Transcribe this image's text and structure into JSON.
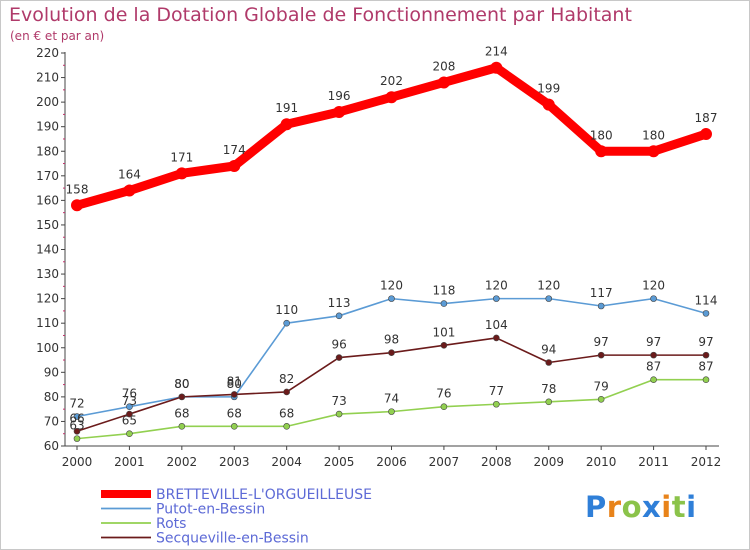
{
  "chart_data": {
    "type": "line",
    "title": "Evolution de la Dotation Globale de Fonctionnement par Habitant",
    "subtitle": "(en € et par an)",
    "xlabel": "",
    "ylabel": "",
    "x": [
      "2000",
      "2001",
      "2002",
      "2003",
      "2004",
      "2005",
      "2006",
      "2007",
      "2008",
      "2009",
      "2010",
      "2011",
      "2012"
    ],
    "ylim": [
      60,
      220
    ],
    "yticks": [
      "60",
      "70",
      "80",
      "90",
      "100",
      "110",
      "120",
      "130",
      "140",
      "150",
      "160",
      "170",
      "180",
      "190",
      "200",
      "210",
      "220"
    ],
    "grid": false,
    "legend_position": "bottom-left",
    "series": [
      {
        "name": "BRETTEVILLE-L'ORGUEILLEUSE",
        "color": "#ff0000",
        "values": [
          158,
          164,
          171,
          174,
          191,
          196,
          202,
          208,
          214,
          199,
          180,
          180,
          187
        ]
      },
      {
        "name": "Putot-en-Bessin",
        "color": "#5b9bd5",
        "values": [
          72,
          76,
          80,
          80,
          110,
          113,
          120,
          118,
          120,
          120,
          117,
          120,
          114
        ]
      },
      {
        "name": "Rots",
        "color": "#92d050",
        "values": [
          63,
          65,
          68,
          68,
          68,
          73,
          74,
          76,
          77,
          78,
          79,
          87,
          87
        ]
      },
      {
        "name": "Secqueville-en-Bessin",
        "color": "#6b1b1b",
        "values": [
          66,
          73,
          80,
          81,
          82,
          96,
          98,
          101,
          104,
          94,
          97,
          97,
          97
        ]
      }
    ]
  },
  "logo": {
    "letters": [
      "P",
      "r",
      "o",
      "x",
      "i",
      "t",
      "i"
    ],
    "colors": [
      "#2f7fd8",
      "#e8831a",
      "#8bc34a",
      "#2f7fd8",
      "#e8831a",
      "#8bc34a",
      "#2f7fd8"
    ]
  }
}
